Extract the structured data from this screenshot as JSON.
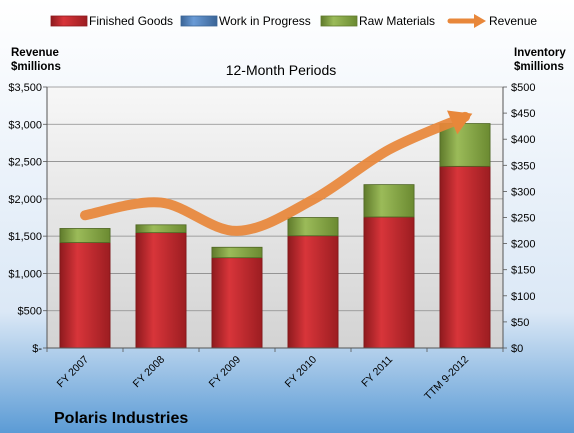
{
  "colors": {
    "bg_top": "#ffffff",
    "bg_bottom": "#5b9bd5",
    "finished_goods": "#c0282d",
    "work_in_progress": "#4f81bd",
    "raw_materials": "#86a543",
    "revenue": "#e8873a"
  },
  "chart_data": {
    "type": "bar",
    "subtitle": "12-Month Periods",
    "company": "Polaris Industries",
    "left_axis_title": [
      "Revenue",
      "$millions"
    ],
    "right_axis_title": [
      "Inventory",
      "$millions"
    ],
    "categories": [
      "FY 2007",
      "FY 2008",
      "FY 2009",
      "FY 2010",
      "FY 2011",
      "TTM 9-2012"
    ],
    "left_axis": {
      "min": 0,
      "max": 3500,
      "ticks": [
        "$-",
        "$500",
        "$1,000",
        "$1,500",
        "$2,000",
        "$2,500",
        "$3,000",
        "$3,500"
      ]
    },
    "right_axis": {
      "min": 0,
      "max": 500,
      "ticks": [
        "$0",
        "$50",
        "$100",
        "$150",
        "$200",
        "$250",
        "$300",
        "$350",
        "$400",
        "$450",
        "$500"
      ]
    },
    "legend_position": "top",
    "grid": true,
    "series": [
      {
        "name": "Finished Goods",
        "type": "stacked-bar",
        "axis": "right",
        "values": [
          202,
          221,
          173,
          215,
          251,
          348
        ]
      },
      {
        "name": "Work in Progress",
        "type": "stacked-bar",
        "axis": "right",
        "values": [
          0,
          0,
          0,
          0,
          0,
          0
        ]
      },
      {
        "name": "Raw Materials",
        "type": "stacked-bar",
        "axis": "right",
        "values": [
          27,
          15,
          20,
          35,
          62,
          82
        ]
      },
      {
        "name": "Revenue",
        "type": "line",
        "axis": "left",
        "values": [
          1780,
          1950,
          1570,
          1990,
          2660,
          3100
        ]
      }
    ]
  }
}
